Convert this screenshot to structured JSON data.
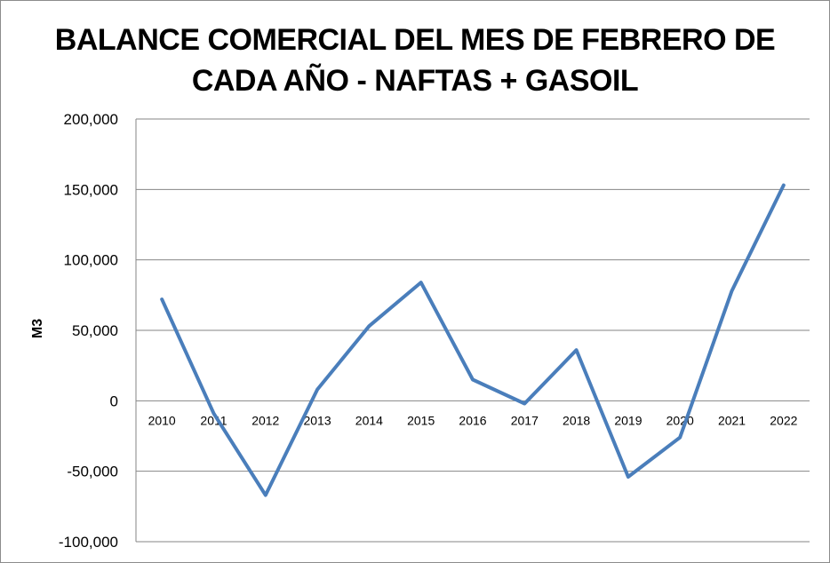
{
  "chart_data": {
    "type": "line",
    "title": "BALANCE COMERCIAL DEL MES DE FEBRERO DE CADA AÑO - NAFTAS + GASOIL",
    "title_lines": [
      "BALANCE COMERCIAL DEL MES DE FEBRERO DE",
      "CADA AÑO - NAFTAS + GASOIL"
    ],
    "xlabel": "",
    "ylabel": "M3",
    "ylim": [
      -100000,
      200000
    ],
    "y_ticks": [
      200000,
      150000,
      100000,
      50000,
      0,
      -50000,
      -100000
    ],
    "y_tick_labels": [
      "200,000",
      "150,000",
      "100,000",
      "50,000",
      "0",
      "-50,000",
      "-100,000"
    ],
    "categories": [
      "2010",
      "2011",
      "2012",
      "2013",
      "2014",
      "2015",
      "2016",
      "2017",
      "2018",
      "2019",
      "2020",
      "2021",
      "2022"
    ],
    "series": [
      {
        "values": [
          72000,
          -9000,
          -67000,
          8000,
          53000,
          84000,
          15000,
          -2000,
          36000,
          -54000,
          -26000,
          78000,
          153000
        ],
        "color": "#4a7ebb"
      }
    ],
    "grid": true,
    "legend": "none"
  }
}
